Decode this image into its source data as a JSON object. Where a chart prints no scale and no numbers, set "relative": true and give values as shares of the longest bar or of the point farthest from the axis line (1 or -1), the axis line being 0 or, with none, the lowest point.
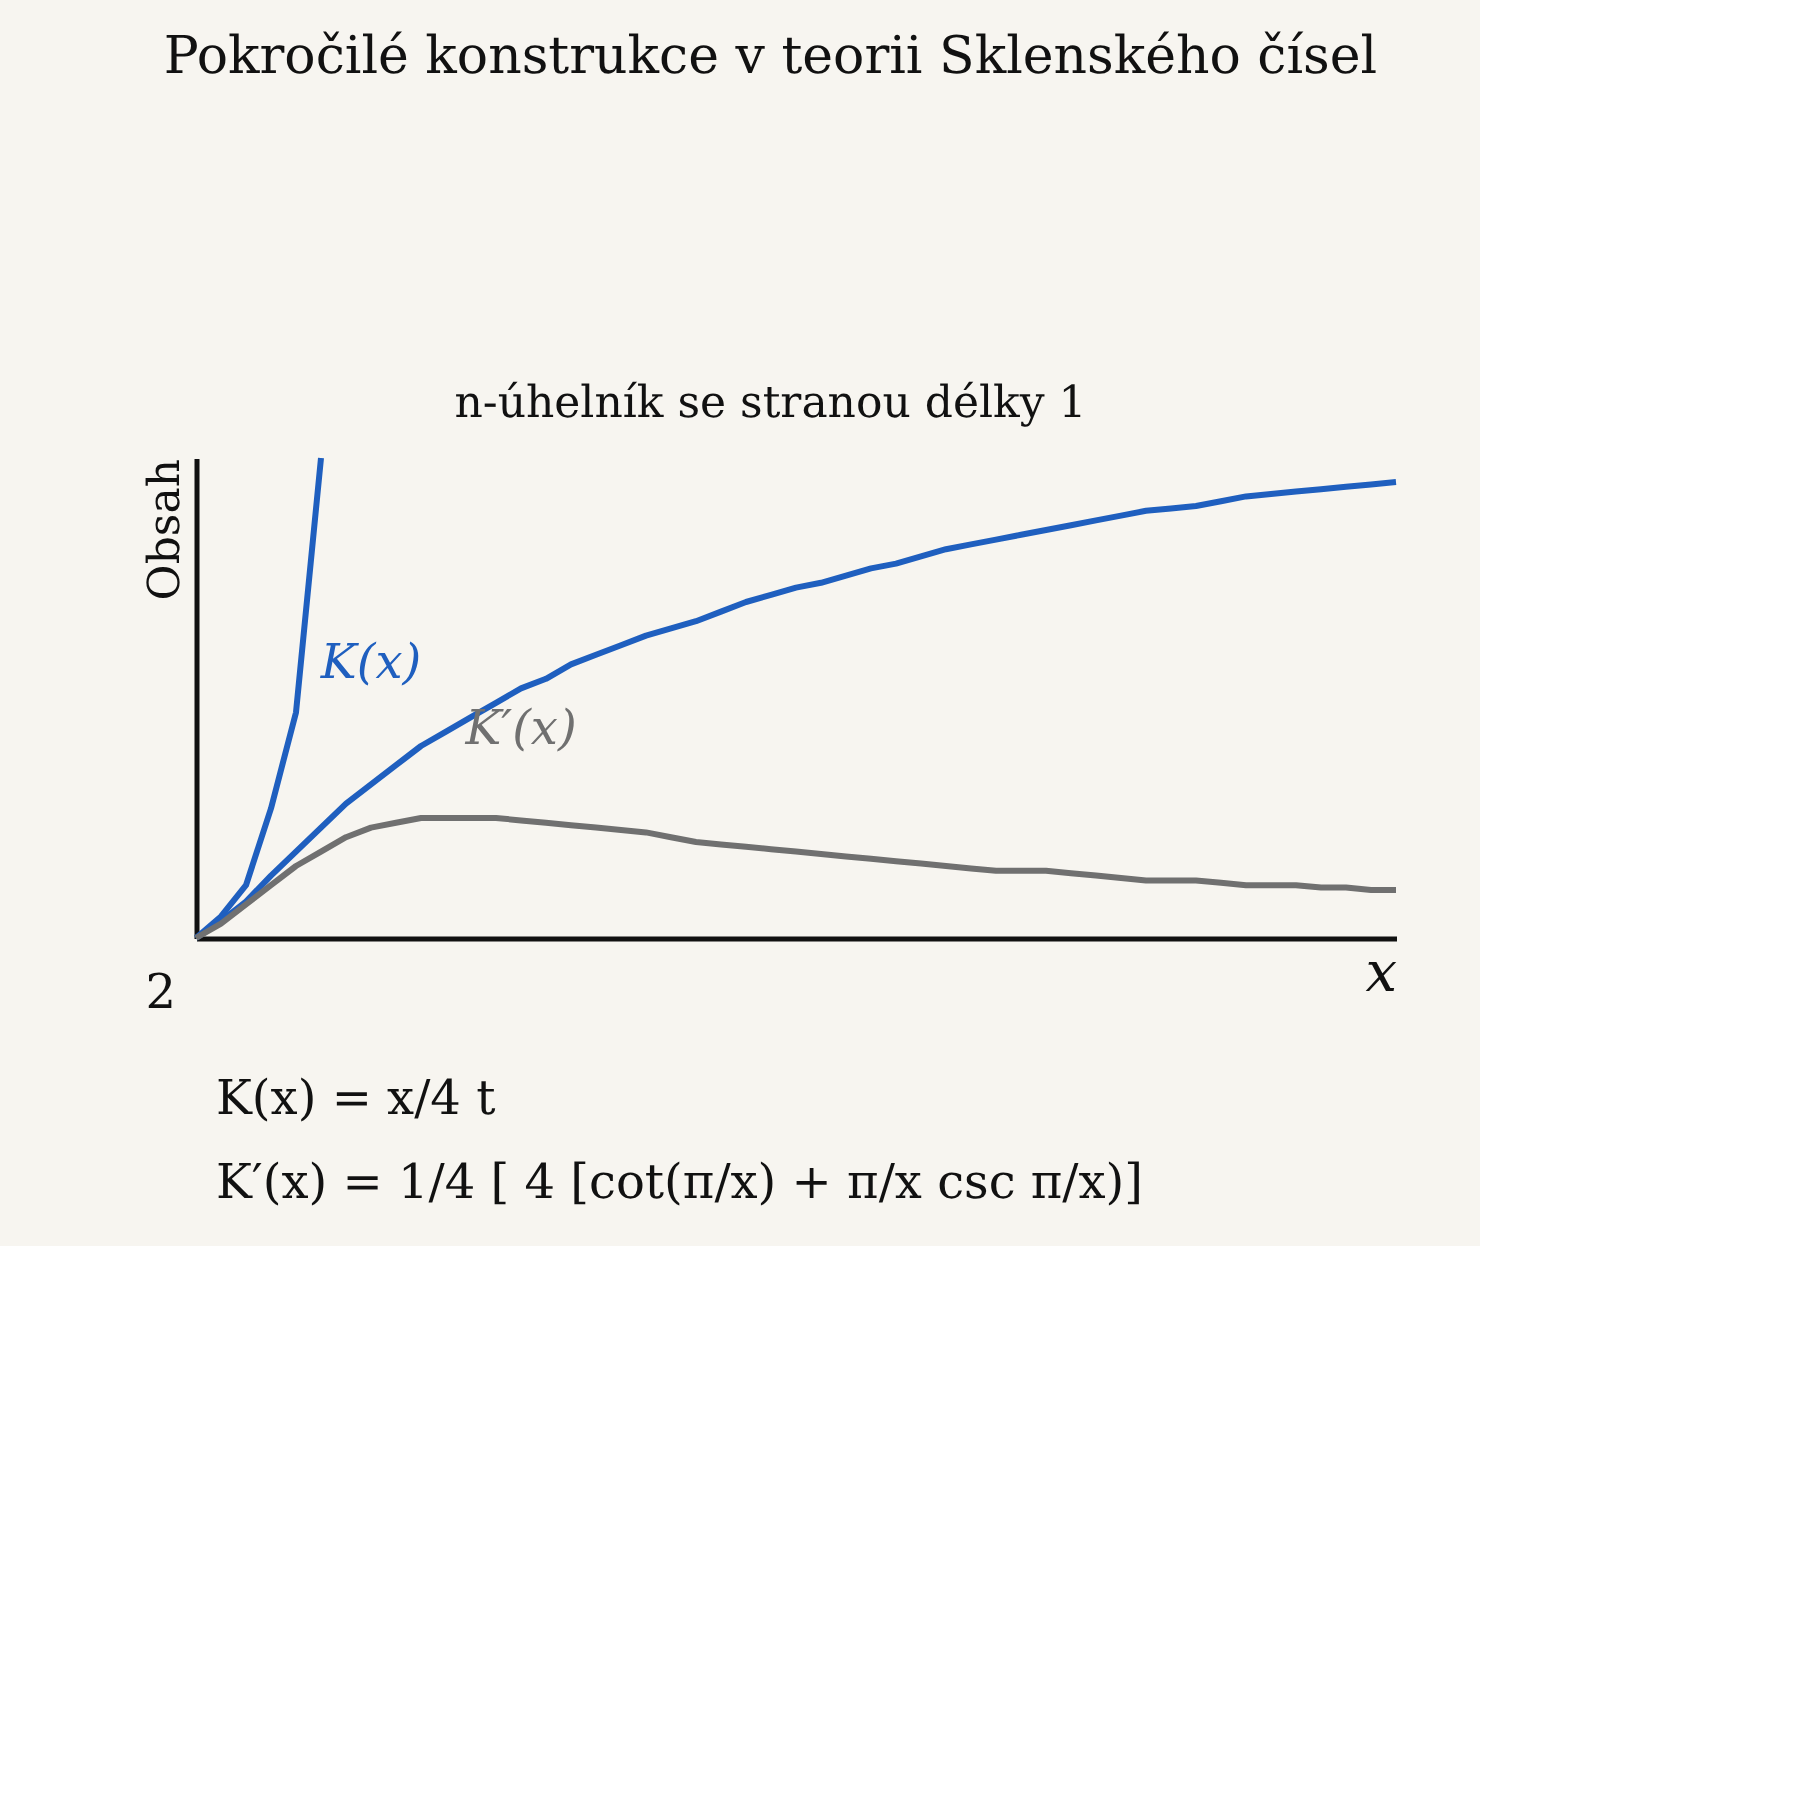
{
  "chart_data": {
    "type": "line",
    "title": "Pokročilé konstrukce v teorii Sklenského čísel",
    "subtitle": "n-úhelník se stranou délky 1",
    "xlabel": "x",
    "ylabel": "Obsah",
    "relative": true,
    "legend": false,
    "grid": false,
    "categories": [
      null,
      null,
      null,
      null,
      null,
      null,
      null,
      null,
      null,
      null,
      null,
      null,
      null,
      null,
      null,
      null,
      null,
      null,
      null,
      null,
      null,
      null,
      null,
      null,
      null,
      null,
      null,
      null,
      null,
      null,
      null,
      null,
      null,
      null,
      null,
      null,
      null,
      null,
      null,
      null,
      null,
      null,
      null,
      null,
      null,
      null,
      null,
      null,
      null
    ],
    "series": [
      {
        "color": "#1f5fbf",
        "values": [
          0,
          0.045,
          0.11,
          0.27,
          0.47,
          1,
          null,
          null,
          null,
          null,
          null,
          null,
          null,
          null,
          null,
          null,
          null,
          null,
          null,
          null,
          null,
          null,
          null,
          null,
          null,
          null,
          null,
          null,
          null,
          null,
          null,
          null,
          null,
          null,
          null,
          null,
          null,
          null,
          null,
          null,
          null,
          null,
          null,
          null,
          null,
          null,
          null,
          null,
          null
        ]
      },
      {
        "name": "K(x)",
        "color": "#1f5fbf",
        "values": [
          0,
          0.035,
          0.076,
          0.13,
          0.18,
          0.23,
          0.28,
          0.32,
          0.36,
          0.4,
          0.43,
          0.46,
          0.49,
          0.52,
          0.54,
          0.57,
          0.59,
          0.61,
          0.63,
          0.645,
          0.66,
          0.68,
          0.7,
          0.715,
          0.73,
          0.74,
          0.755,
          0.77,
          0.78,
          0.795,
          0.81,
          0.82,
          0.83,
          0.84,
          0.85,
          0.86,
          0.87,
          0.88,
          0.89,
          0.895,
          0.9,
          0.91,
          0.92,
          0.925,
          0.93,
          0.935,
          0.94,
          0.945,
          0.95
        ]
      },
      {
        "name": "K′(x)",
        "color": "#707070",
        "values": [
          0,
          0.03,
          0.07,
          0.11,
          0.15,
          0.18,
          0.21,
          0.23,
          0.24,
          0.25,
          0.25,
          0.25,
          0.25,
          0.245,
          0.24,
          0.235,
          0.23,
          0.225,
          0.22,
          0.21,
          0.2,
          0.195,
          0.19,
          0.185,
          0.18,
          0.175,
          0.17,
          0.165,
          0.16,
          0.155,
          0.15,
          0.145,
          0.14,
          0.14,
          0.14,
          0.135,
          0.13,
          0.125,
          0.12,
          0.12,
          0.12,
          0.115,
          0.11,
          0.11,
          0.11,
          0.105,
          0.105,
          0.1,
          0.1
        ]
      }
    ],
    "annotations": [
      "2",
      "K(x) = x/4 t",
      "K′(x) = 1/4 [ 4 [cot(π/x) + π/x csc π/x)]"
    ]
  }
}
